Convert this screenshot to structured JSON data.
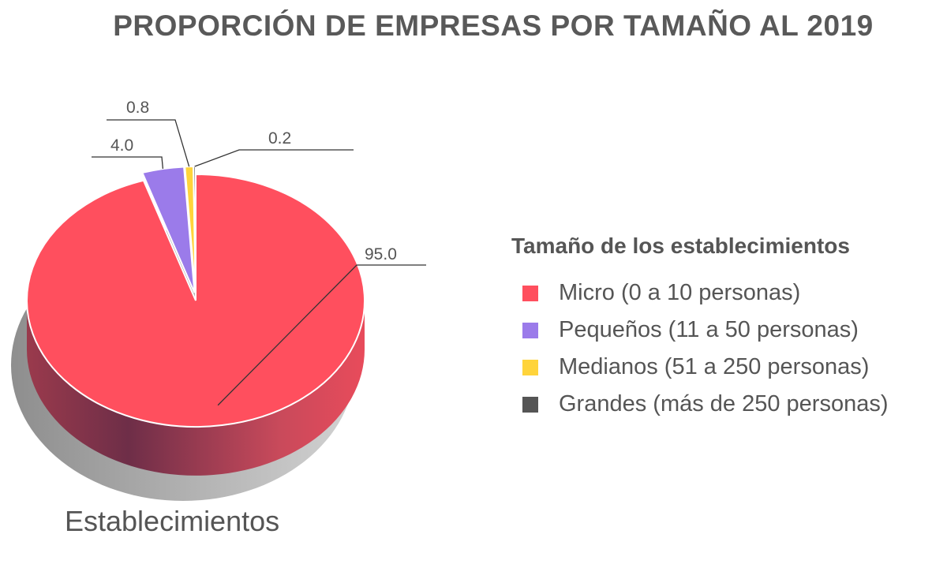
{
  "chart_data": {
    "type": "pie",
    "title": "PROPORCIÓN DE EMPRESAS POR TAMAÑO AL 2019",
    "subtitle_label": "Establecimientos",
    "legend_title": "Tamaño de los establecimientos",
    "legend_placement": "right",
    "style": "3d",
    "slices": [
      {
        "name": "Micro (0 a 10 personas)",
        "value": 95.0,
        "label": "95.0",
        "color": "#FF4F5E"
      },
      {
        "name": "Pequeños (11 a 50 personas)",
        "value": 4.0,
        "label": "4.0",
        "color": "#9B7BEA"
      },
      {
        "name": "Medianos (51 a 250 personas)",
        "value": 0.8,
        "label": "0.8",
        "color": "#FFD43B"
      },
      {
        "name": "Grandes (más de 250 personas)",
        "value": 0.2,
        "label": "0.2",
        "color": "#555555"
      }
    ]
  }
}
